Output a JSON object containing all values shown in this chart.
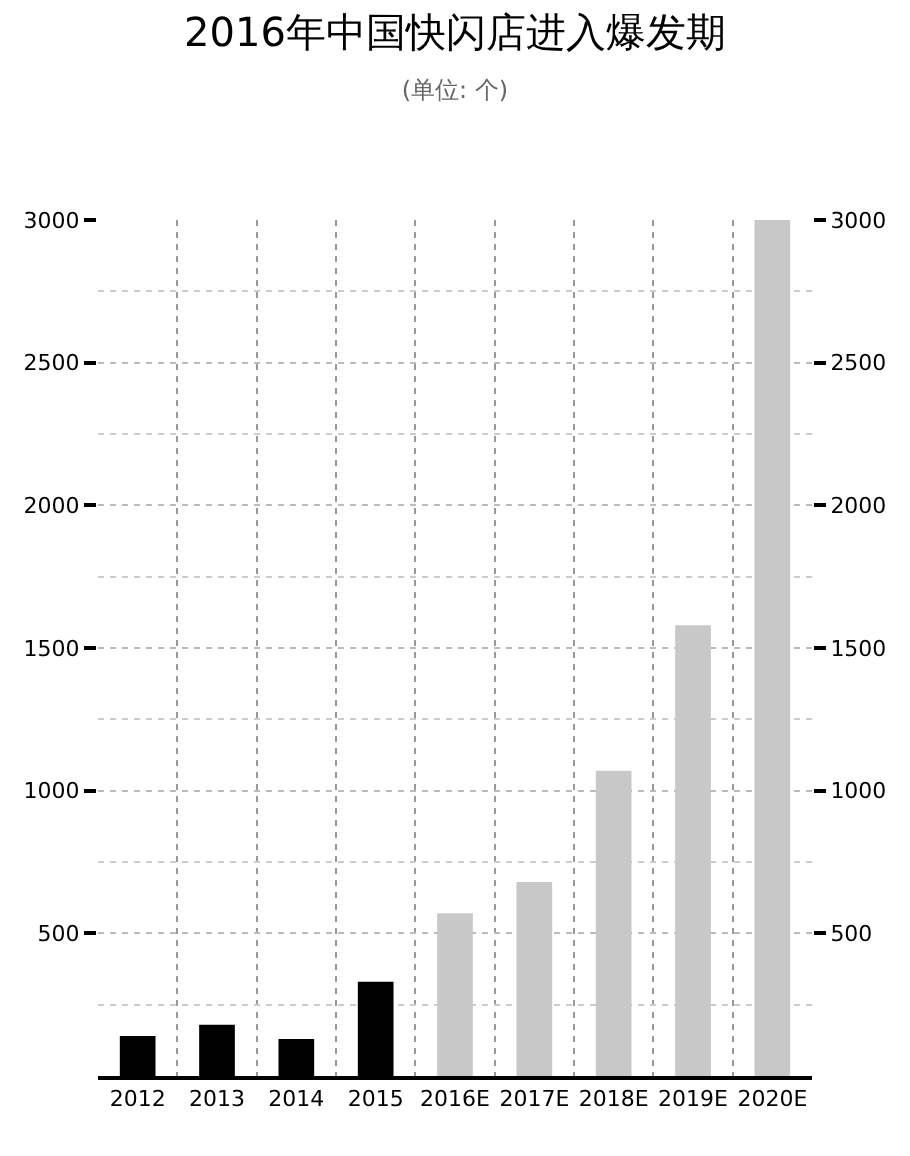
{
  "chart_data": {
    "type": "bar",
    "title": "2016年中国快闪店进入爆发期",
    "subtitle": "(单位: 个)",
    "categories": [
      "2012",
      "2013",
      "2014",
      "2015",
      "2016E",
      "2017E",
      "2018E",
      "2019E",
      "2020E"
    ],
    "values": [
      140,
      180,
      130,
      330,
      570,
      680,
      1070,
      1580,
      3000
    ],
    "colors": [
      "#000000",
      "#000000",
      "#000000",
      "#000000",
      "#c8c8c8",
      "#c8c8c8",
      "#c8c8c8",
      "#c8c8c8",
      "#c8c8c8"
    ],
    "ylim": [
      0,
      3000
    ],
    "yticks": [
      500,
      1000,
      1500,
      2000,
      2500,
      3000
    ],
    "y2lim": [
      0,
      3000
    ],
    "y2ticks": [
      500,
      1000,
      1500,
      2000,
      2500,
      3000
    ],
    "grid": true
  }
}
